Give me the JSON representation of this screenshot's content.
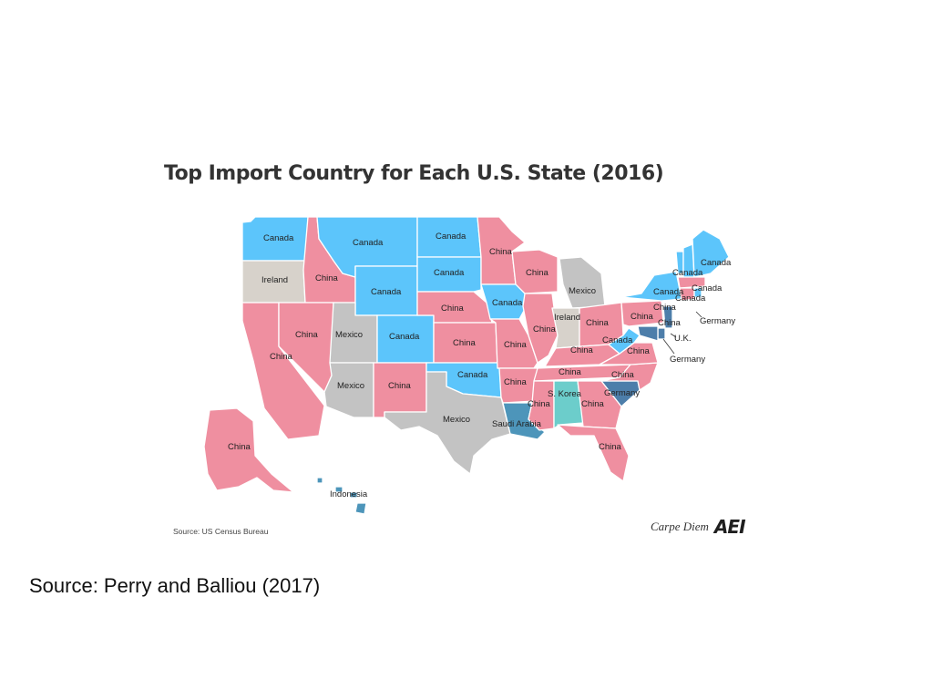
{
  "title": "Top Import Country for Each U.S. State (2016)",
  "colors": {
    "China": "#ef8fa0",
    "Canada": "#5cc5fb",
    "Mexico": "#c3c3c3",
    "Ireland": "#d7d2cb",
    "Germany": "#4d7eaa",
    "Saudi Arabia": "#4d95ba",
    "S. Korea": "#6ccdcb",
    "U.K.": "#4d7eaa",
    "Indonesia": "#4d95ba"
  },
  "regions": [
    {
      "id": "WA",
      "label": "Canada",
      "country": "Canada"
    },
    {
      "id": "OR",
      "label": "Ireland",
      "country": "Ireland"
    },
    {
      "id": "CA",
      "label": "China",
      "country": "China"
    },
    {
      "id": "ID",
      "label": "China",
      "country": "China"
    },
    {
      "id": "NV",
      "label": "China",
      "country": "China"
    },
    {
      "id": "MT",
      "label": "Canada",
      "country": "Canada"
    },
    {
      "id": "WY",
      "label": "Canada",
      "country": "Canada"
    },
    {
      "id": "UT",
      "label": "Mexico",
      "country": "Mexico"
    },
    {
      "id": "CO",
      "label": "Canada",
      "country": "Canada"
    },
    {
      "id": "AZ",
      "label": "Mexico",
      "country": "Mexico"
    },
    {
      "id": "NM",
      "label": "China",
      "country": "China"
    },
    {
      "id": "ND",
      "label": "Canada",
      "country": "Canada"
    },
    {
      "id": "SD",
      "label": "Canada",
      "country": "Canada"
    },
    {
      "id": "NE",
      "label": "China",
      "country": "China"
    },
    {
      "id": "KS",
      "label": "China",
      "country": "China"
    },
    {
      "id": "OK",
      "label": "Canada",
      "country": "Canada"
    },
    {
      "id": "TX",
      "label": "Mexico",
      "country": "Mexico"
    },
    {
      "id": "MN",
      "label": "China",
      "country": "China"
    },
    {
      "id": "IA",
      "label": "Canada",
      "country": "Canada"
    },
    {
      "id": "MO",
      "label": "China",
      "country": "China"
    },
    {
      "id": "AR",
      "label": "China",
      "country": "China"
    },
    {
      "id": "LA",
      "label": "Saudi Arabia",
      "country": "Saudi Arabia"
    },
    {
      "id": "WI",
      "label": "China",
      "country": "China"
    },
    {
      "id": "IL",
      "label": "China",
      "country": "China"
    },
    {
      "id": "MI",
      "label": "Mexico",
      "country": "Mexico"
    },
    {
      "id": "IN",
      "label": "Ireland",
      "country": "Ireland"
    },
    {
      "id": "OH",
      "label": "China",
      "country": "China"
    },
    {
      "id": "KY",
      "label": "China",
      "country": "China"
    },
    {
      "id": "TN",
      "label": "China",
      "country": "China"
    },
    {
      "id": "MS",
      "label": "China",
      "country": "China"
    },
    {
      "id": "AL",
      "label": "S. Korea",
      "country": "S. Korea"
    },
    {
      "id": "GA",
      "label": "China",
      "country": "China"
    },
    {
      "id": "FL",
      "label": "China",
      "country": "China"
    },
    {
      "id": "SC",
      "label": "Germany",
      "country": "Germany"
    },
    {
      "id": "NC",
      "label": "China",
      "country": "China"
    },
    {
      "id": "VA",
      "label": "China",
      "country": "China"
    },
    {
      "id": "WV",
      "label": "Canada",
      "country": "Canada"
    },
    {
      "id": "PA",
      "label": "China",
      "country": "China"
    },
    {
      "id": "NY",
      "label": "Canada",
      "country": "Canada"
    },
    {
      "id": "VT",
      "label": "Canada",
      "country": "Canada"
    },
    {
      "id": "NH",
      "label": "Canada",
      "country": "Canada"
    },
    {
      "id": "ME",
      "label": "Canada",
      "country": "Canada"
    },
    {
      "id": "MA",
      "label": "China",
      "country": "China"
    },
    {
      "id": "CT",
      "label": "China",
      "country": "China"
    },
    {
      "id": "RI",
      "label": "Canada",
      "country": "Canada"
    },
    {
      "id": "NJ",
      "label": "Germany",
      "country": "Germany"
    },
    {
      "id": "DE",
      "label": "U.K.",
      "country": "U.K."
    },
    {
      "id": "MD",
      "label": "Germany",
      "country": "Germany"
    },
    {
      "id": "AK",
      "label": "China",
      "country": "China"
    },
    {
      "id": "HI",
      "label": "Indonesia",
      "country": "Indonesia"
    }
  ],
  "source_note": "Source: US Census Bureau",
  "logo_text": "Carpe Diem",
  "logo_mark": "AEI",
  "caption": "Source:  Perry and Balliou (2017)"
}
